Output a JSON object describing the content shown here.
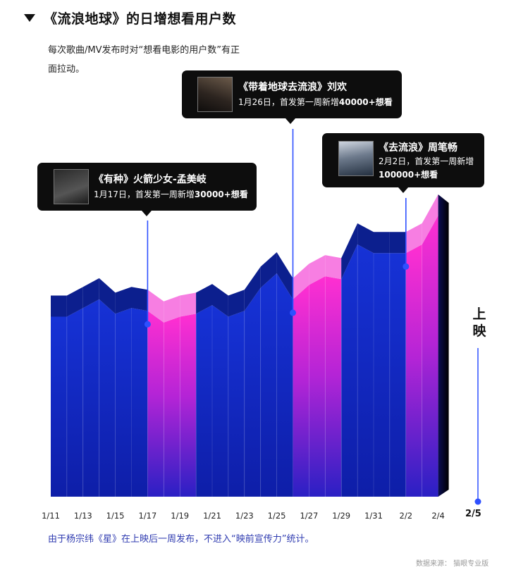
{
  "header": {
    "title": "《流浪地球》的日增想看用户数",
    "subtitle": "每次歌曲/MV发布时对“想看电影的用户数”有正面拉动。"
  },
  "callouts": [
    {
      "song": "《有种》火箭少女-孟美岐",
      "desc_prefix": "1月17日，首发第一周新增",
      "desc_number": "30000",
      "desc_suffix": "+想看",
      "thumb_icon": "album-cover-you-zhong"
    },
    {
      "song": "《带着地球去流浪》刘欢",
      "desc_prefix": "1月26日，首发第一周新增",
      "desc_number": "40000",
      "desc_suffix": "+想看",
      "thumb_icon": "album-cover-dai-zhe-di-qiu"
    },
    {
      "song": "《去流浪》周笔畅",
      "desc_prefix": "2月2日，首发第一周新增",
      "desc_number": "100000",
      "desc_suffix": "+想看",
      "thumb_icon": "album-cover-qu-liu-lang"
    }
  ],
  "release_marker": {
    "label": "上映",
    "date": "2/5"
  },
  "footnote": "由于杨宗纬《星》在上映后一周发布，不进入“映前宣传力”统计。",
  "source": "数据来源：  猫眼专业版",
  "colors": {
    "blue": "#1327c4",
    "magenta": "#ec23c8",
    "marker": "#2e50ff"
  },
  "chart_data": {
    "type": "area",
    "title": "《流浪地球》的日增想看用户数",
    "xlabel": "",
    "ylabel": "",
    "x_tick_labels": [
      "1/11",
      "1/13",
      "1/15",
      "1/17",
      "1/19",
      "1/21",
      "1/23",
      "1/25",
      "1/27",
      "1/29",
      "1/31",
      "2/2",
      "2/4"
    ],
    "x": [
      "1/11",
      "1/12",
      "1/13",
      "1/14",
      "1/15",
      "1/16",
      "1/17",
      "1/18",
      "1/19",
      "1/20",
      "1/21",
      "1/22",
      "1/23",
      "1/24",
      "1/25",
      "1/26",
      "1/27",
      "1/28",
      "1/29",
      "1/30",
      "1/31",
      "2/1",
      "2/2",
      "2/3",
      "2/4"
    ],
    "series": [
      {
        "values": [
          0.95,
          0.95,
          0.98,
          1.01,
          0.96,
          0.98,
          0.97,
          0.93,
          0.95,
          0.96,
          0.99,
          0.95,
          0.97,
          1.05,
          1.1,
          1.01,
          1.06,
          1.09,
          1.08,
          1.2,
          1.17,
          1.17,
          1.17,
          1.2,
          1.3
        ]
      }
    ],
    "highlight_periods": [
      {
        "start": "1/17",
        "end": "1/20"
      },
      {
        "start": "1/26",
        "end": "1/29"
      },
      {
        "start": "2/2",
        "end": "2/4"
      }
    ],
    "release_points": [
      "1/17",
      "1/26",
      "2/2"
    ],
    "grid": false,
    "legend": "none"
  }
}
